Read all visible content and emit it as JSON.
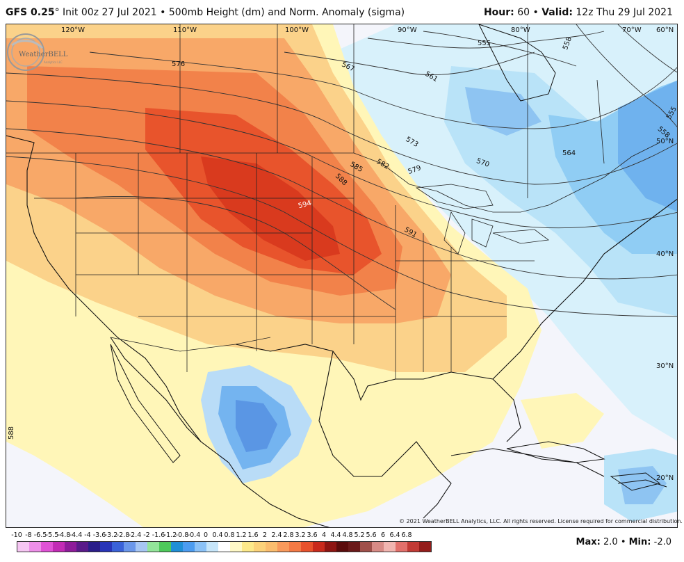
{
  "header": {
    "model": "GFS 0.25",
    "degree": "°",
    "init": "Init 00z 27 Jul 2021",
    "sep": "•",
    "product": "500mb Height (dm) and Norm. Anomaly (sigma)",
    "hour_label": "Hour:",
    "hour_value": "60",
    "valid_label": "Valid:",
    "valid_value": "12z Thu 29 Jul 2021"
  },
  "map": {
    "lon_labels": [
      "120°W",
      "110°W",
      "100°W",
      "90°W",
      "80°W",
      "70°W",
      "60°N"
    ],
    "lat_labels": [
      "50°N",
      "40°N",
      "30°N",
      "20°N"
    ],
    "contour_labels": [
      "555",
      "558",
      "561",
      "567",
      "573",
      "576",
      "579",
      "582",
      "585",
      "588",
      "591",
      "594",
      "564",
      "570",
      "558",
      "555",
      "588"
    ],
    "logo_text": "WeatherBELL",
    "logo_sub": "Analytics LLC",
    "copyright": "© 2021 WeatherBELL Analytics, LLC. All rights reserved. License required for commercial distribution."
  },
  "colorbar": {
    "labels": [
      "-10",
      "-8",
      "-6.5",
      "-5.5",
      "-4.8",
      "-4.4",
      "-4",
      "-3.6",
      "-3.2",
      "-2.8",
      "-2.4",
      "-2",
      "-1.6",
      "-1.2",
      "-0.8",
      "-0.4",
      "0",
      "0.4",
      "0.8",
      "1.2",
      "1.6",
      "2",
      "2.4",
      "2.8",
      "3.2",
      "3.6",
      "4",
      "4.4",
      "4.8",
      "5.2",
      "5.6",
      "6",
      "6.4",
      "6.8"
    ],
    "colors": [
      "#f6c6f3",
      "#ee8fe9",
      "#e052d6",
      "#c22bb5",
      "#8e1b9a",
      "#5a1a8a",
      "#2b1e8a",
      "#2835b8",
      "#3a62d8",
      "#6b97ea",
      "#a7c6f3",
      "#93e59a",
      "#4ec95b",
      "#1f8fd6",
      "#4c9cf0",
      "#8bc2f7",
      "#c7e6fa",
      "#ffffff",
      "#fff9c7",
      "#fde98a",
      "#fcd27a",
      "#fbbd6e",
      "#f99a5c",
      "#f47a45",
      "#e8522c",
      "#c92a1c",
      "#8e1512",
      "#5b0c0c",
      "#6b1a1a",
      "#a0504a",
      "#d88b86",
      "#f1b5b0",
      "#e2706b",
      "#c23a35",
      "#941d1b"
    ],
    "max_label": "Max:",
    "max_value": "2.0",
    "min_label": "Min:",
    "min_value": "-2.0",
    "sep": "•"
  }
}
